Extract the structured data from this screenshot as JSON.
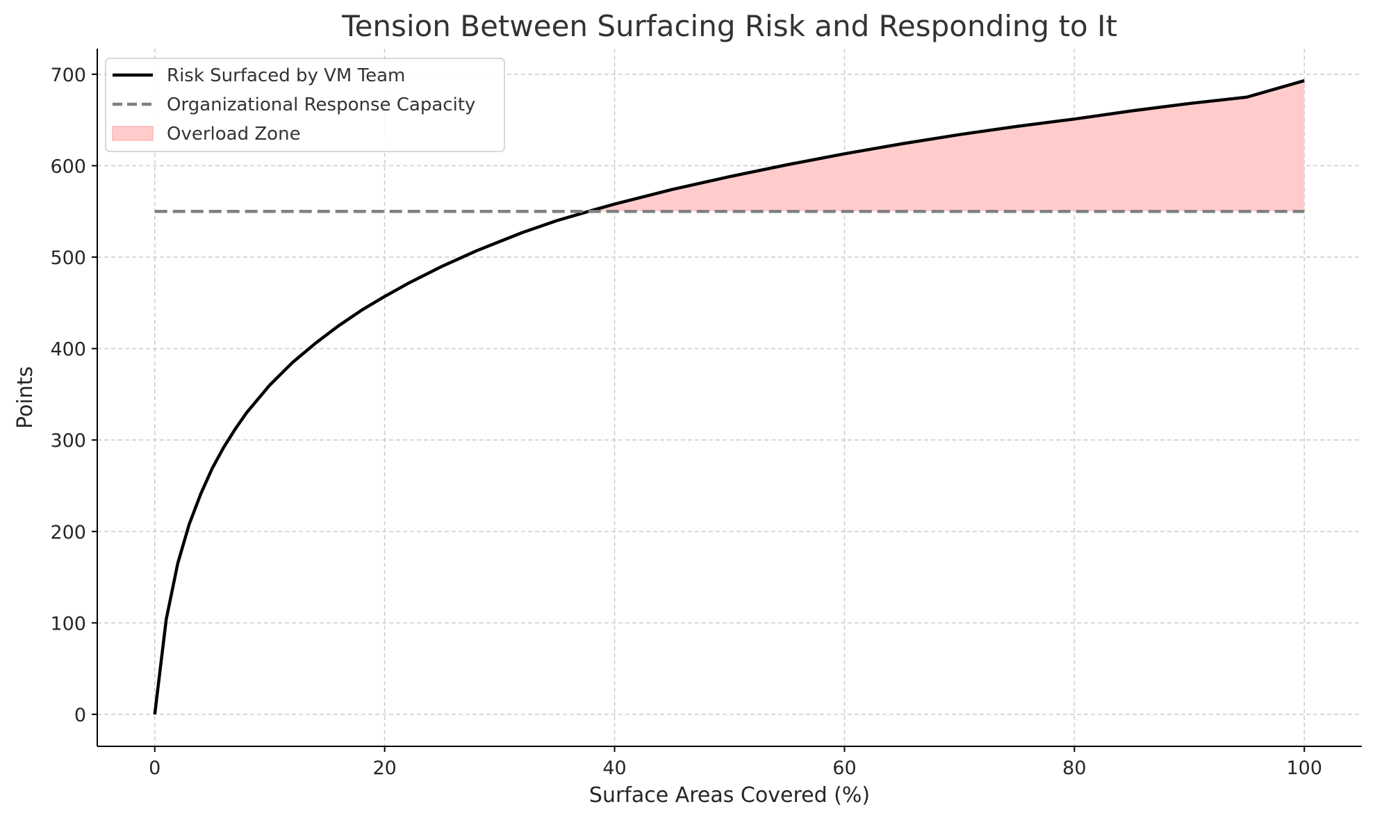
{
  "chart_data": {
    "type": "line",
    "title": "Tension Between Surfacing Risk and Responding to It",
    "xlabel": "Surface Areas Covered (%)",
    "ylabel": "Points",
    "xlim": [
      -5,
      105
    ],
    "ylim": [
      -35,
      728
    ],
    "x_ticks": [
      0,
      20,
      40,
      60,
      80,
      100
    ],
    "y_ticks": [
      0,
      100,
      200,
      300,
      400,
      500,
      600,
      700
    ],
    "grid": true,
    "legend_position": "top-left",
    "series": [
      {
        "name": "Risk Surfaced by VM Team",
        "style": "solid",
        "color": "#000000",
        "x": [
          0,
          1,
          2,
          3,
          4,
          5,
          6,
          7,
          8,
          9,
          10,
          12,
          14,
          16,
          18,
          20,
          22,
          25,
          28,
          30,
          32,
          35,
          38,
          40,
          45,
          50,
          55,
          60,
          65,
          70,
          75,
          80,
          85,
          90,
          95,
          100
        ],
        "y": [
          0,
          104,
          165,
          208,
          241,
          269,
          292,
          312,
          330,
          345,
          360,
          385,
          406,
          425,
          442,
          457,
          471,
          490,
          507,
          517,
          527,
          540,
          551,
          558,
          574,
          588,
          601,
          613,
          624,
          634,
          643,
          651,
          660,
          668,
          675,
          693
        ]
      },
      {
        "name": "Organizational Response Capacity",
        "style": "dashed",
        "color": "#808080",
        "x": [
          0,
          100
        ],
        "y": [
          550,
          550
        ]
      }
    ],
    "fill": {
      "name": "Overload Zone",
      "color": "#ffcccb",
      "description_between": [
        "Risk Surfaced by VM Team",
        "Organizational Response Capacity"
      ]
    }
  }
}
